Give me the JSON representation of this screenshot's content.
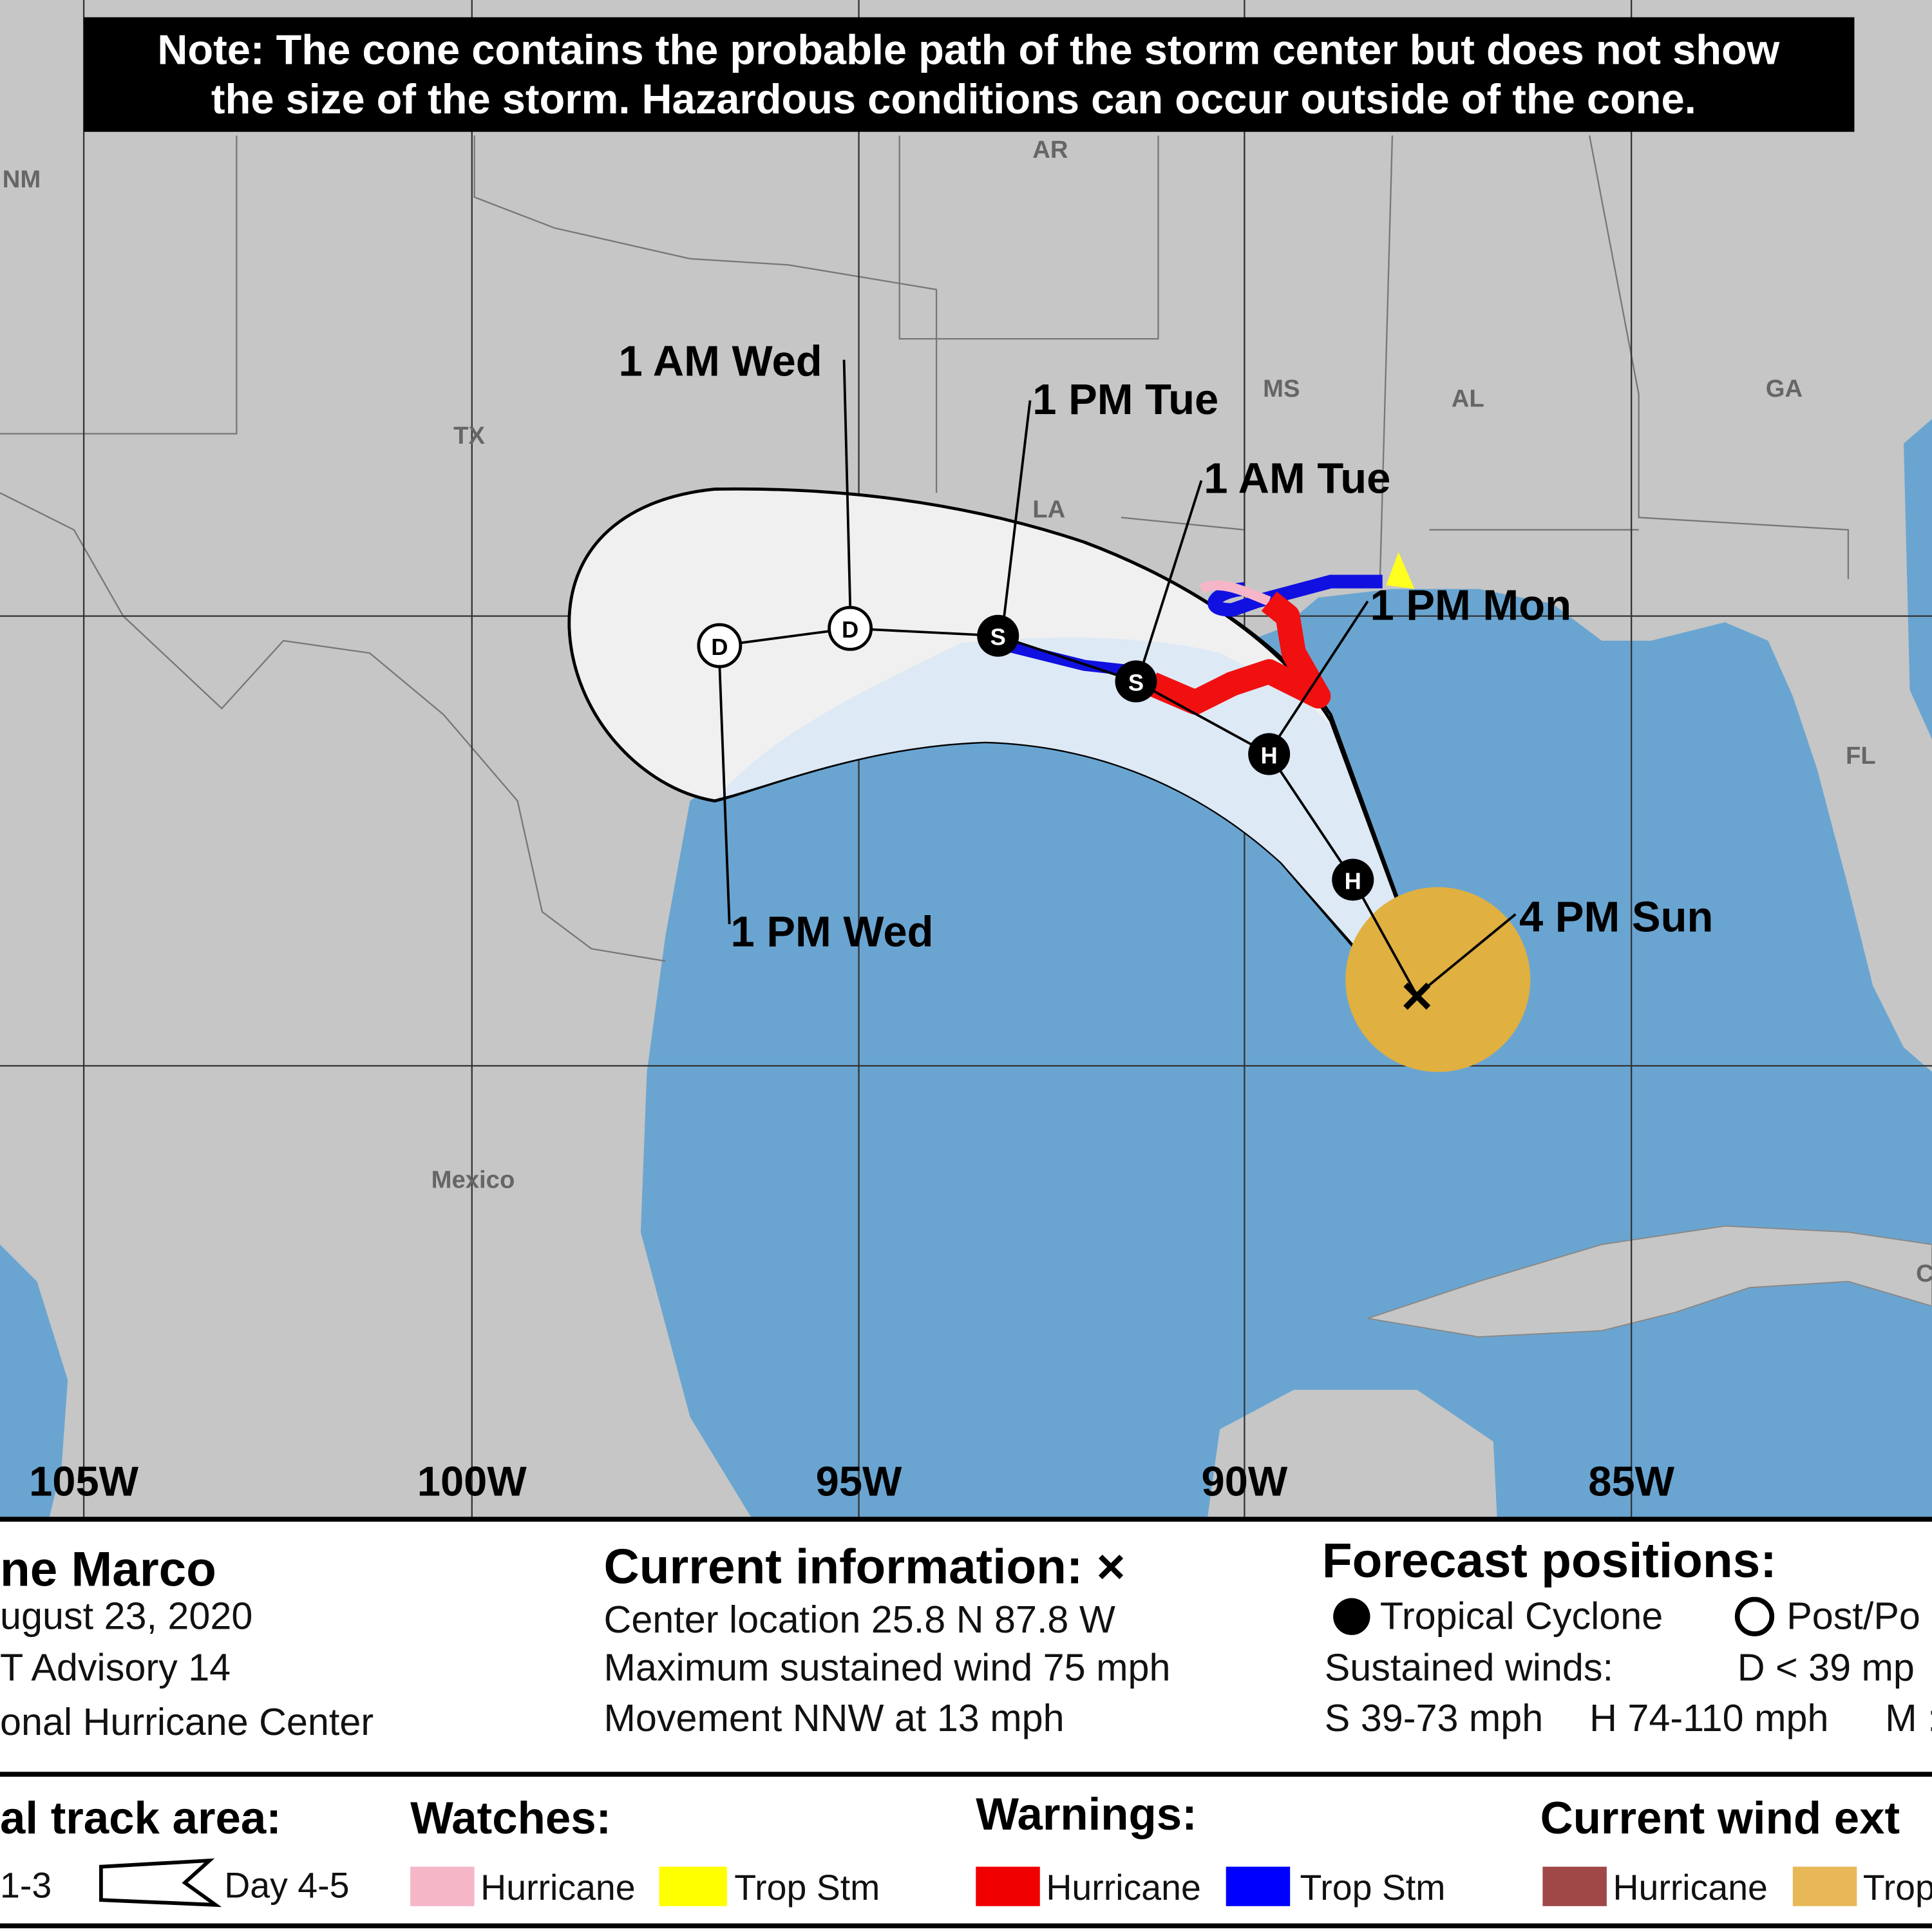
{
  "note": [
    "Note: The cone contains the probable path of the storm center but does not show",
    "the size of the storm. Hazardous conditions can occur outside of the cone."
  ],
  "map": {
    "state_labels": [
      "NM",
      "AR",
      "TX",
      "MS",
      "AL",
      "GA",
      "LA",
      "FL",
      "Mexico",
      "C"
    ],
    "time_labels": [
      "1 AM Wed",
      "1 PM Tue",
      "1 AM Tue",
      "1 PM Mon",
      "4 PM Sun",
      "1 PM Wed"
    ],
    "markers": [
      "D",
      "D",
      "S",
      "S",
      "H",
      "H"
    ],
    "current_marker": "×",
    "longitudes": [
      "105W",
      "100W",
      "95W",
      "90W",
      "85W"
    ]
  },
  "legend": {
    "storm": [
      "ne Marco",
      "ugust 23, 2020",
      "T Advisory 14",
      "onal Hurricane Center"
    ],
    "current_title": "Current information: ×",
    "current": [
      "Center location 25.8 N 87.8 W",
      "Maximum sustained wind 75 mph",
      "Movement NNW at 13 mph"
    ],
    "forecast_title": "Forecast positions:",
    "forecast": [
      "Tropical Cyclone",
      "Post/Po",
      "Sustained winds:",
      "D < 39 mp",
      "S 39-73 mph",
      "H 74-110 mph",
      "M :"
    ],
    "track_title": "al track area:",
    "track": [
      "1-3",
      "Day 4-5"
    ],
    "watches_title": "Watches:",
    "watches": [
      "Hurricane",
      "Trop Stm"
    ],
    "warnings_title": "Warnings:",
    "warnings": [
      "Hurricane",
      "Trop Stm"
    ],
    "wind_title": "Current wind ext",
    "wind": [
      "Hurricane",
      "Trop"
    ]
  }
}
